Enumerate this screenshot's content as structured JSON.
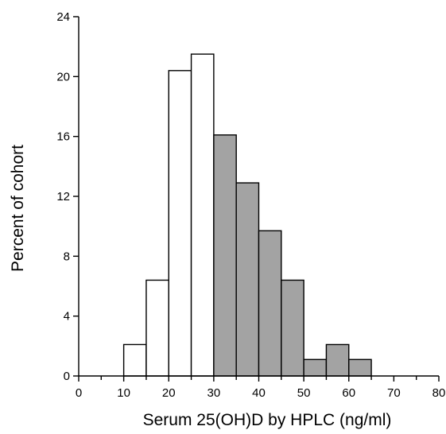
{
  "chart_data": {
    "type": "bar",
    "title": "",
    "xlabel": "Serum 25(OH)D by HPLC (ng/ml)",
    "ylabel": "Percent of cohort",
    "xlim": [
      0,
      80
    ],
    "ylim": [
      0,
      24
    ],
    "x_ticks": [
      "0",
      "10",
      "20",
      "30",
      "40",
      "50",
      "60",
      "70",
      "80"
    ],
    "y_ticks": [
      "0",
      "4",
      "8",
      "12",
      "16",
      "20",
      "24"
    ],
    "grid": false,
    "legend": "none",
    "bin_width": 5,
    "bins": [
      {
        "start": 10,
        "end": 15,
        "value": 2.1,
        "group": "below-30"
      },
      {
        "start": 15,
        "end": 20,
        "value": 6.4,
        "group": "below-30"
      },
      {
        "start": 20,
        "end": 25,
        "value": 20.4,
        "group": "below-30"
      },
      {
        "start": 25,
        "end": 30,
        "value": 21.5,
        "group": "below-30"
      },
      {
        "start": 30,
        "end": 35,
        "value": 16.1,
        "group": "30-and-above"
      },
      {
        "start": 35,
        "end": 40,
        "value": 12.9,
        "group": "30-and-above"
      },
      {
        "start": 40,
        "end": 45,
        "value": 9.7,
        "group": "30-and-above"
      },
      {
        "start": 45,
        "end": 50,
        "value": 6.4,
        "group": "30-and-above"
      },
      {
        "start": 50,
        "end": 55,
        "value": 1.1,
        "group": "30-and-above"
      },
      {
        "start": 55,
        "end": 60,
        "value": 2.1,
        "group": "30-and-above"
      },
      {
        "start": 60,
        "end": 65,
        "value": 1.1,
        "group": "30-and-above"
      }
    ],
    "colors": {
      "below-30": "#ffffff",
      "30-and-above": "#a3a3a3",
      "outline": "#000000"
    }
  }
}
